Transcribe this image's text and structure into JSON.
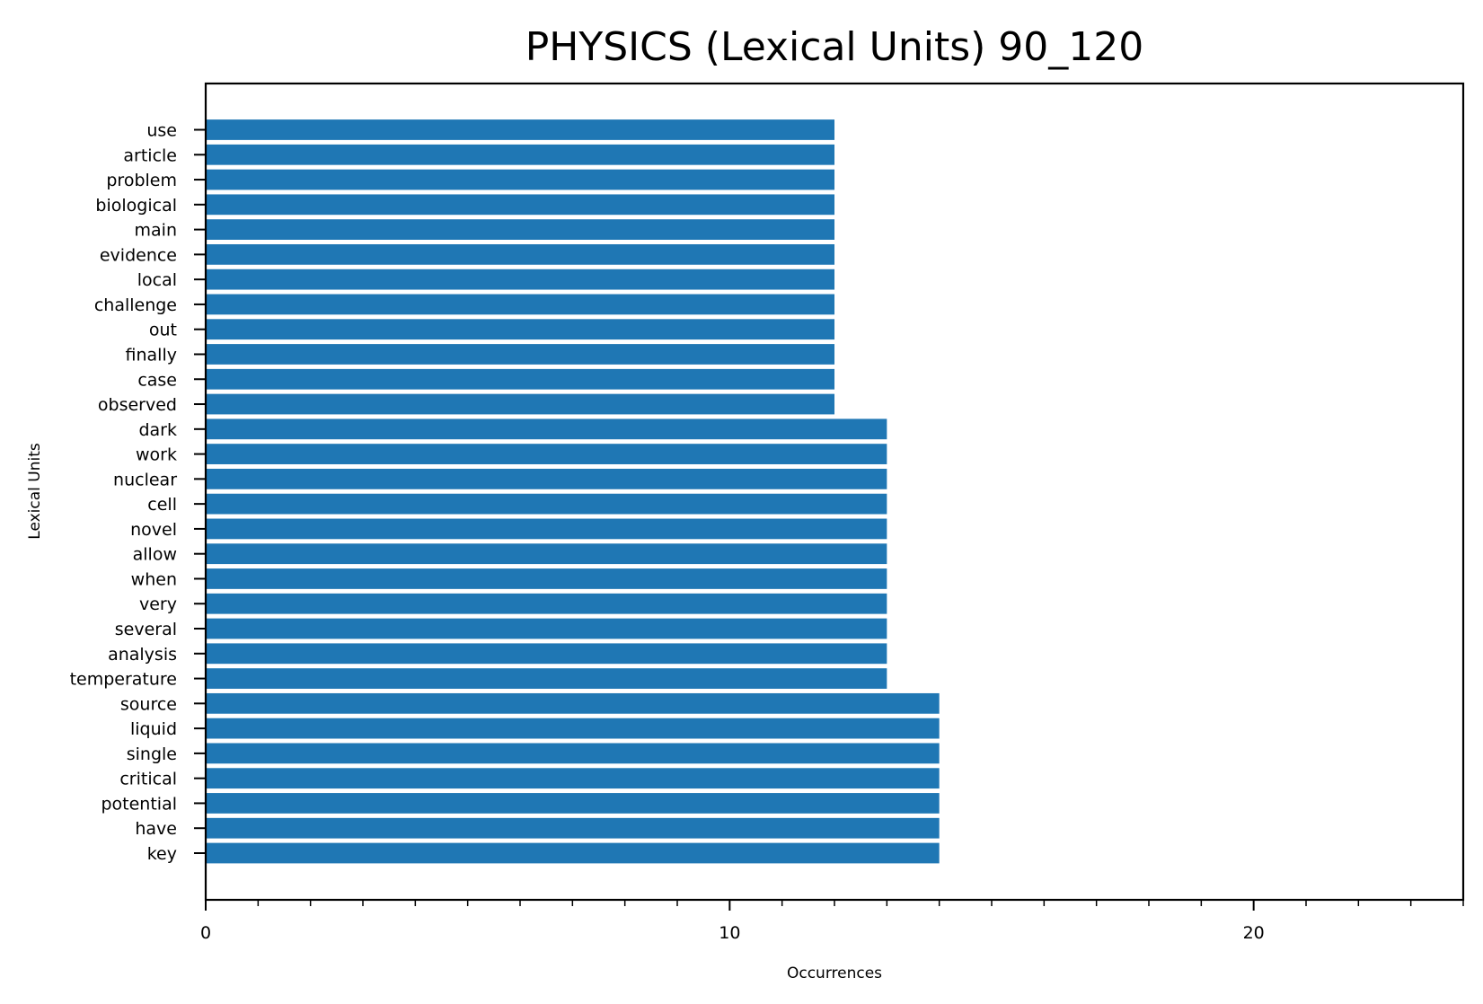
{
  "chart_data": {
    "type": "bar",
    "orientation": "horizontal",
    "title": "PHYSICS (Lexical Units) 90_120",
    "xlabel": "Occurrences",
    "ylabel": "Lexical Units",
    "xlim": [
      0,
      24
    ],
    "x_ticks": [
      0,
      10,
      20
    ],
    "x_minor_tick_step": 1,
    "grid": false,
    "bar_color": "#1f77b4",
    "categories": [
      "use",
      "article",
      "problem",
      "biological",
      "main",
      "evidence",
      "local",
      "challenge",
      "out",
      "finally",
      "case",
      "observed",
      "dark",
      "work",
      "nuclear",
      "cell",
      "novel",
      "allow",
      "when",
      "very",
      "several",
      "analysis",
      "temperature",
      "source",
      "liquid",
      "single",
      "critical",
      "potential",
      "have",
      "key"
    ],
    "values": [
      12,
      12,
      12,
      12,
      12,
      12,
      12,
      12,
      12,
      12,
      12,
      12,
      13,
      13,
      13,
      13,
      13,
      13,
      13,
      13,
      13,
      13,
      13,
      14,
      14,
      14,
      14,
      14,
      14,
      14
    ]
  }
}
